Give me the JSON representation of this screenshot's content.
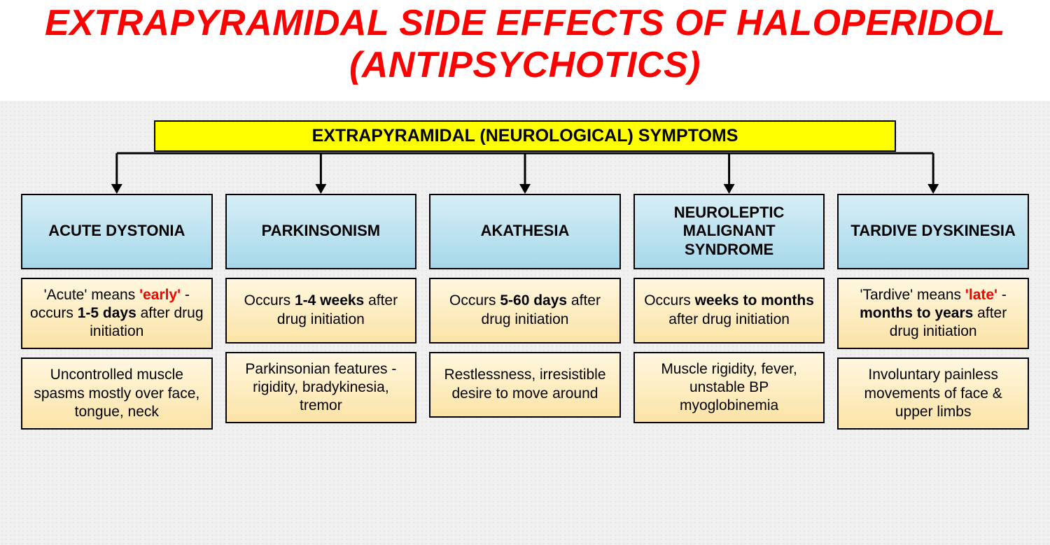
{
  "title": "EXTRAPYRAMIDAL SIDE EFFECTS OF HALOPERIDOL (ANTIPSYCHOTICS)",
  "root_label": "EXTRAPYRAMIDAL (NEUROLOGICAL) SYMPTOMS",
  "colors": {
    "title_color": "#ff0000",
    "root_bg": "#ffff00",
    "cat_bg_top": "#d7eef6",
    "cat_bg_bottom": "#a6d8ea",
    "info_bg_top": "#fff7df",
    "info_bg_bottom": "#fbe3a6",
    "border": "#000000",
    "page_bg": "#f0f0f0",
    "highlight_red": "#ff0000"
  },
  "typography": {
    "title_fontsize": 52,
    "title_style": "italic bold",
    "root_fontsize": 25,
    "cat_fontsize": 22,
    "info_fontsize": 21
  },
  "layout": {
    "columns": 5,
    "col_gap": 18,
    "side_padding": 30,
    "root_width": 1060,
    "cat_height": 108,
    "info_min_height": 94,
    "arrow_drop": 60
  },
  "categories": [
    {
      "name": "ACUTE DYSTONIA",
      "timing_segments": [
        {
          "t": "'Acute' means "
        },
        {
          "t": "'early'",
          "cls": "red-bold"
        },
        {
          "t": " - occurs "
        },
        {
          "t": "1-5 days",
          "cls": "bold"
        },
        {
          "t": " after drug initiation"
        }
      ],
      "desc": "Uncontrolled muscle spasms mostly over face, tongue, neck"
    },
    {
      "name": "PARKINSONISM",
      "timing_segments": [
        {
          "t": "Occurs "
        },
        {
          "t": "1-4 weeks",
          "cls": "bold"
        },
        {
          "t": " after drug initiation"
        }
      ],
      "desc": "Parkinsonian features - rigidity, bradykinesia, tremor"
    },
    {
      "name": "AKATHESIA",
      "timing_segments": [
        {
          "t": "Occurs "
        },
        {
          "t": "5-60 days",
          "cls": "bold"
        },
        {
          "t": " after drug initiation"
        }
      ],
      "desc": "Restlessness, irresistible desire to move around"
    },
    {
      "name": "NEUROLEPTIC MALIGNANT SYNDROME",
      "timing_segments": [
        {
          "t": "Occurs "
        },
        {
          "t": "weeks to months",
          "cls": "bold"
        },
        {
          "t": " after drug initiation"
        }
      ],
      "desc": "Muscle rigidity, fever, unstable BP myoglobinemia"
    },
    {
      "name": "TARDIVE DYSKINESIA",
      "timing_segments": [
        {
          "t": "'Tardive' means "
        },
        {
          "t": "'late'",
          "cls": "red-bold"
        },
        {
          "t": " - "
        },
        {
          "t": "months to years",
          "cls": "bold"
        },
        {
          "t": " after drug initiation"
        }
      ],
      "desc": "Involuntary painless movements of face & upper limbs"
    }
  ]
}
